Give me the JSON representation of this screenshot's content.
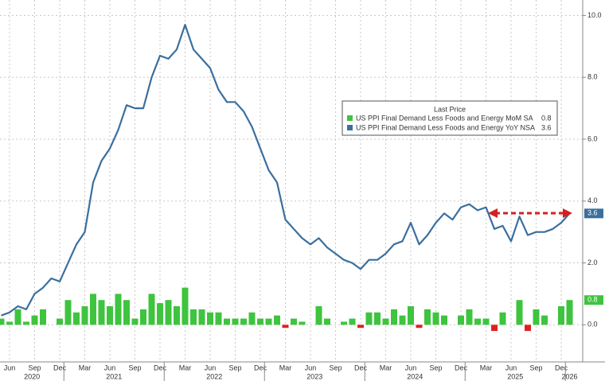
{
  "chart_data": {
    "type": "bar-line",
    "categories": [
      null,
      "Jun",
      null,
      null,
      "Sep",
      null,
      null,
      "Dec",
      null,
      null,
      "Mar",
      null,
      null,
      "Jun",
      null,
      null,
      "Sep",
      null,
      null,
      "Dec",
      null,
      null,
      "Mar",
      null,
      null,
      "Jun",
      null,
      null,
      "Sep",
      null,
      null,
      "Dec",
      null,
      null,
      "Mar",
      null,
      null,
      "Jun",
      null,
      null,
      "Sep",
      null,
      null,
      "Dec",
      null,
      null,
      "Mar",
      null,
      null,
      "Jun",
      null,
      null,
      "Sep",
      null,
      null,
      "Dec",
      null,
      null,
      "Mar",
      null,
      null,
      "Jun",
      null,
      null,
      "Sep",
      null,
      null,
      "Dec",
      null
    ],
    "years": [
      "2020",
      null,
      null,
      null,
      null,
      null,
      null,
      null,
      "2021",
      null,
      null,
      null,
      null,
      null,
      null,
      null,
      null,
      null,
      null,
      null,
      "2022",
      null,
      null,
      null,
      null,
      null,
      null,
      null,
      null,
      null,
      null,
      null,
      "2023",
      null,
      null,
      null,
      null,
      null,
      null,
      null,
      null,
      null,
      null,
      null,
      "2024",
      null,
      null,
      null,
      null,
      null,
      null,
      null,
      null,
      null,
      null,
      null,
      "2025",
      null,
      null,
      null,
      null,
      null,
      null,
      null,
      null,
      null,
      null,
      null,
      "2026"
    ],
    "legend_title": "Last Price",
    "series": [
      {
        "name": "US PPI Final Demand Less Foods and Energy MoM SA",
        "color": "#3ec43e",
        "negative_color": "#e02020",
        "kind": "bar",
        "values": [
          0.2,
          0.1,
          0.5,
          0.1,
          0.3,
          0.5,
          0.0,
          0.2,
          0.8,
          0.4,
          0.6,
          1.0,
          0.8,
          0.6,
          1.0,
          0.8,
          0.2,
          0.5,
          1.0,
          0.7,
          0.8,
          0.6,
          1.2,
          0.5,
          0.5,
          0.4,
          0.4,
          0.2,
          0.2,
          0.2,
          0.4,
          0.2,
          0.2,
          0.3,
          -0.1,
          0.2,
          0.1,
          0.0,
          0.6,
          0.2,
          0.0,
          0.1,
          0.2,
          -0.1,
          0.4,
          0.4,
          0.2,
          0.5,
          0.3,
          0.6,
          -0.1,
          0.5,
          0.4,
          0.3,
          0.0,
          0.3,
          0.5,
          0.2,
          0.2,
          -0.2,
          0.4,
          0.0,
          0.8,
          -0.2,
          0.5,
          0.3,
          0.0,
          0.6,
          0.8
        ]
      },
      {
        "name": "US PPI Final Demand Less Foods and Energy YoY NSA",
        "color": "#3a6f9e",
        "kind": "line",
        "values": [
          0.3,
          0.4,
          0.6,
          0.5,
          1.0,
          1.2,
          1.5,
          1.4,
          2.0,
          2.6,
          3.0,
          4.6,
          5.3,
          5.7,
          6.3,
          7.1,
          7.0,
          7.0,
          8.0,
          8.7,
          8.6,
          8.9,
          9.7,
          8.9,
          8.6,
          8.3,
          7.6,
          7.2,
          7.2,
          6.9,
          6.4,
          5.7,
          5.0,
          4.6,
          3.4,
          3.1,
          2.8,
          2.6,
          2.8,
          2.5,
          2.3,
          2.1,
          2.0,
          1.8,
          2.1,
          2.1,
          2.3,
          2.6,
          2.7,
          3.3,
          2.6,
          2.9,
          3.3,
          3.6,
          3.4,
          3.8,
          3.9,
          3.7,
          3.8,
          3.1,
          3.2,
          2.7,
          3.5,
          2.9,
          3.0,
          3.0,
          3.1,
          3.3,
          3.6
        ]
      }
    ],
    "ylim": [
      -1.2,
      10.5
    ],
    "yticks": [
      {
        "value": 0,
        "label": "0.0"
      },
      {
        "value": 2,
        "label": "2.0"
      },
      {
        "value": 4,
        "label": "4.0"
      },
      {
        "value": 6,
        "label": "6.0"
      },
      {
        "value": 8,
        "label": "8.0"
      },
      {
        "value": 10,
        "label": "10.0"
      }
    ],
    "grid": true
  }
}
